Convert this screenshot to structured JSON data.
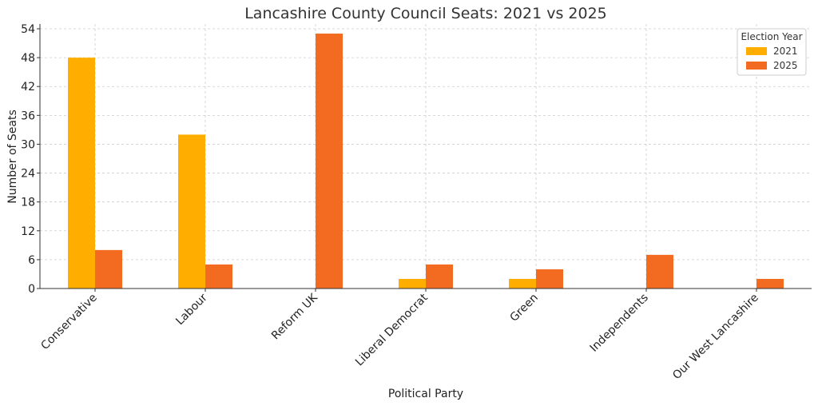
{
  "chart_data": {
    "type": "bar",
    "title": "Lancashire County Council Seats: 2021 vs 2025",
    "xlabel": "Political Party",
    "ylabel": "Number of Seats",
    "categories": [
      "Conservative",
      "Labour",
      "Reform UK",
      "Liberal Democrat",
      "Green",
      "Independents",
      "Our West Lancashire"
    ],
    "series": [
      {
        "name": "2021",
        "color": "#FFAE00",
        "values": [
          48,
          32,
          0,
          2,
          2,
          0,
          0
        ]
      },
      {
        "name": "2025",
        "color": "#F26B21",
        "values": [
          8,
          5,
          53,
          5,
          4,
          7,
          2
        ]
      }
    ],
    "ylim": [
      0,
      55
    ],
    "yticks": [
      0,
      6,
      12,
      18,
      24,
      30,
      36,
      42,
      48,
      54
    ],
    "grid": true,
    "legend": {
      "title": "Election Year",
      "placement": "top-right"
    }
  }
}
